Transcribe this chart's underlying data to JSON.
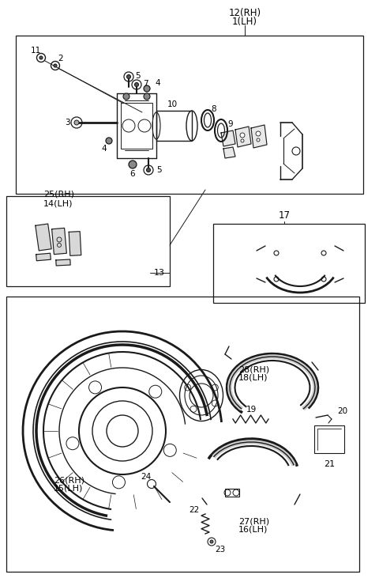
{
  "bg": "#ffffff",
  "lc": "#1a1a1a",
  "figw": 4.8,
  "figh": 7.36,
  "dpi": 100,
  "labels": {
    "top": "12(RH)\n 1(LH)",
    "l11": "11",
    "l2": "2",
    "l3": "3",
    "l4": "4",
    "l5": "5",
    "l6": "6",
    "l7": "7",
    "l8": "8",
    "l9": "9",
    "l10": "10",
    "l13": "13",
    "l17": "17",
    "l25_14": "25(RH)\n14(LH)",
    "l26_15": "26(RH)\n15(LH)",
    "l27_16": "27(RH)\n16(LH)",
    "l28_18": "28(RH)\n18(LH)",
    "l19": "19",
    "l20": "20",
    "l21": "21",
    "l22": "22",
    "l23": "23",
    "l24": "24"
  }
}
